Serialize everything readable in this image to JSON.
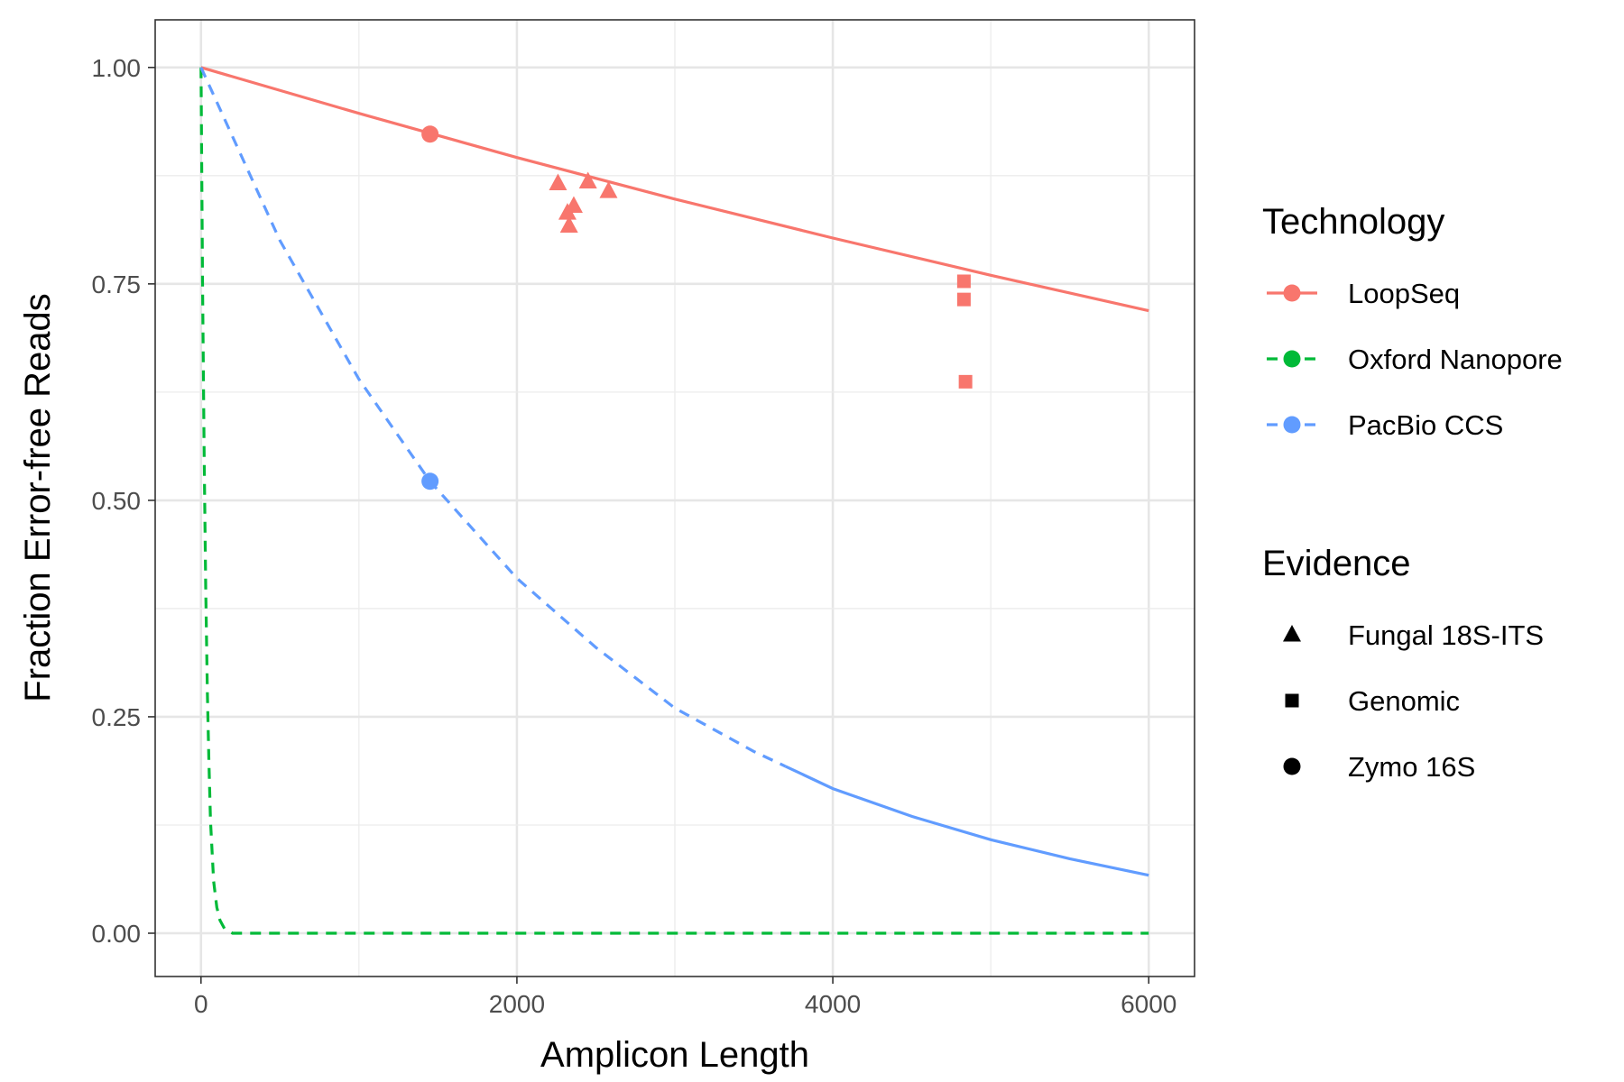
{
  "chart_data": {
    "type": "line",
    "title": "",
    "xlabel": "Amplicon Length",
    "ylabel": "Fraction Error-free Reads",
    "xlim": [
      -290,
      6290
    ],
    "ylim": [
      -0.05,
      1.055
    ],
    "x_ticks": [
      "0",
      "2000",
      "4000",
      "6000"
    ],
    "y_ticks": [
      "0.00",
      "0.25",
      "0.50",
      "0.75",
      "1.00"
    ],
    "grid": true,
    "legend_position": "right",
    "curves": [
      {
        "name": "LoopSeq",
        "color": "#F8766D",
        "dash": "solid",
        "x": [
          0,
          1000,
          2000,
          3000,
          4000,
          5000,
          6000
        ],
        "y": [
          1.0,
          0.947,
          0.896,
          0.848,
          0.803,
          0.76,
          0.719
        ]
      },
      {
        "name": "Oxford Nanopore",
        "color": "#00BA38",
        "dash": "dashed",
        "x": [
          0,
          10,
          20,
          30,
          40,
          50,
          60,
          80,
          100,
          120,
          150,
          200,
          500,
          1000,
          2000,
          3000,
          4000,
          5000,
          6000
        ],
        "y": [
          1.0,
          0.75,
          0.55,
          0.4,
          0.28,
          0.2,
          0.13,
          0.06,
          0.03,
          0.015,
          0.005,
          0.0,
          0.0,
          0.0,
          0.0,
          0.0,
          0.0,
          0.0,
          0.0
        ]
      },
      {
        "name": "PacBio CCS",
        "color": "#619CFF",
        "dash": "dashed-then-solid",
        "x": [
          0,
          500,
          1000,
          1450,
          2000,
          2500,
          3000,
          3500,
          4000,
          4500,
          5000,
          5500,
          6000
        ],
        "y": [
          1.0,
          0.8,
          0.64,
          0.522,
          0.41,
          0.33,
          0.26,
          0.21,
          0.167,
          0.135,
          0.108,
          0.086,
          0.067
        ],
        "dash_until_x": 3700
      }
    ],
    "points": [
      {
        "technology": "LoopSeq",
        "evidence": "Zymo 16S",
        "x": 1450,
        "y": 0.923
      },
      {
        "technology": "PacBio CCS",
        "evidence": "Zymo 16S",
        "x": 1450,
        "y": 0.522
      },
      {
        "technology": "LoopSeq",
        "evidence": "Fungal 18S-ITS",
        "x": 2260,
        "y": 0.866
      },
      {
        "technology": "LoopSeq",
        "evidence": "Fungal 18S-ITS",
        "x": 2450,
        "y": 0.868
      },
      {
        "technology": "LoopSeq",
        "evidence": "Fungal 18S-ITS",
        "x": 2580,
        "y": 0.857
      },
      {
        "technology": "LoopSeq",
        "evidence": "Fungal 18S-ITS",
        "x": 2360,
        "y": 0.84
      },
      {
        "technology": "LoopSeq",
        "evidence": "Fungal 18S-ITS",
        "x": 2320,
        "y": 0.832
      },
      {
        "technology": "LoopSeq",
        "evidence": "Fungal 18S-ITS",
        "x": 2330,
        "y": 0.817
      },
      {
        "technology": "LoopSeq",
        "evidence": "Genomic",
        "x": 4830,
        "y": 0.753
      },
      {
        "technology": "LoopSeq",
        "evidence": "Genomic",
        "x": 4830,
        "y": 0.732
      },
      {
        "technology": "LoopSeq",
        "evidence": "Genomic",
        "x": 4840,
        "y": 0.637
      }
    ],
    "legend": {
      "technology_title": "Technology",
      "technology": [
        {
          "label": "LoopSeq",
          "color": "#F8766D"
        },
        {
          "label": "Oxford Nanopore",
          "color": "#00BA38"
        },
        {
          "label": "PacBio CCS",
          "color": "#619CFF"
        }
      ],
      "evidence_title": "Evidence",
      "evidence": [
        {
          "label": "Fungal 18S-ITS",
          "shape": "triangle"
        },
        {
          "label": "Genomic",
          "shape": "square"
        },
        {
          "label": "Zymo 16S",
          "shape": "circle"
        }
      ]
    }
  }
}
